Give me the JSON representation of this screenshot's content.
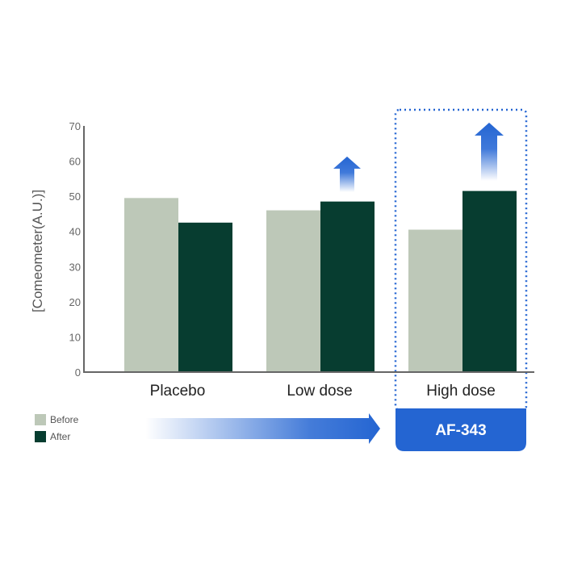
{
  "chart_data": {
    "type": "bar",
    "categories": [
      "Placebo",
      "Low dose",
      "High dose"
    ],
    "series": [
      {
        "name": "Before",
        "values": [
          49.5,
          46,
          40.5
        ]
      },
      {
        "name": "After",
        "values": [
          42.5,
          48.5,
          51.5
        ]
      }
    ],
    "ylabel": "[Comeometer(A.U.)]",
    "ylim": [
      0,
      70
    ],
    "yticks": [
      0,
      10,
      20,
      30,
      40,
      50,
      60,
      70
    ],
    "grid": false,
    "legend": "bottom-left",
    "highlight": {
      "category": "High dose",
      "label": "AF-343"
    },
    "colors": {
      "before": "#bdc8b8",
      "after": "#073d30",
      "accent": "#2465d2",
      "axis": "#666666"
    }
  }
}
